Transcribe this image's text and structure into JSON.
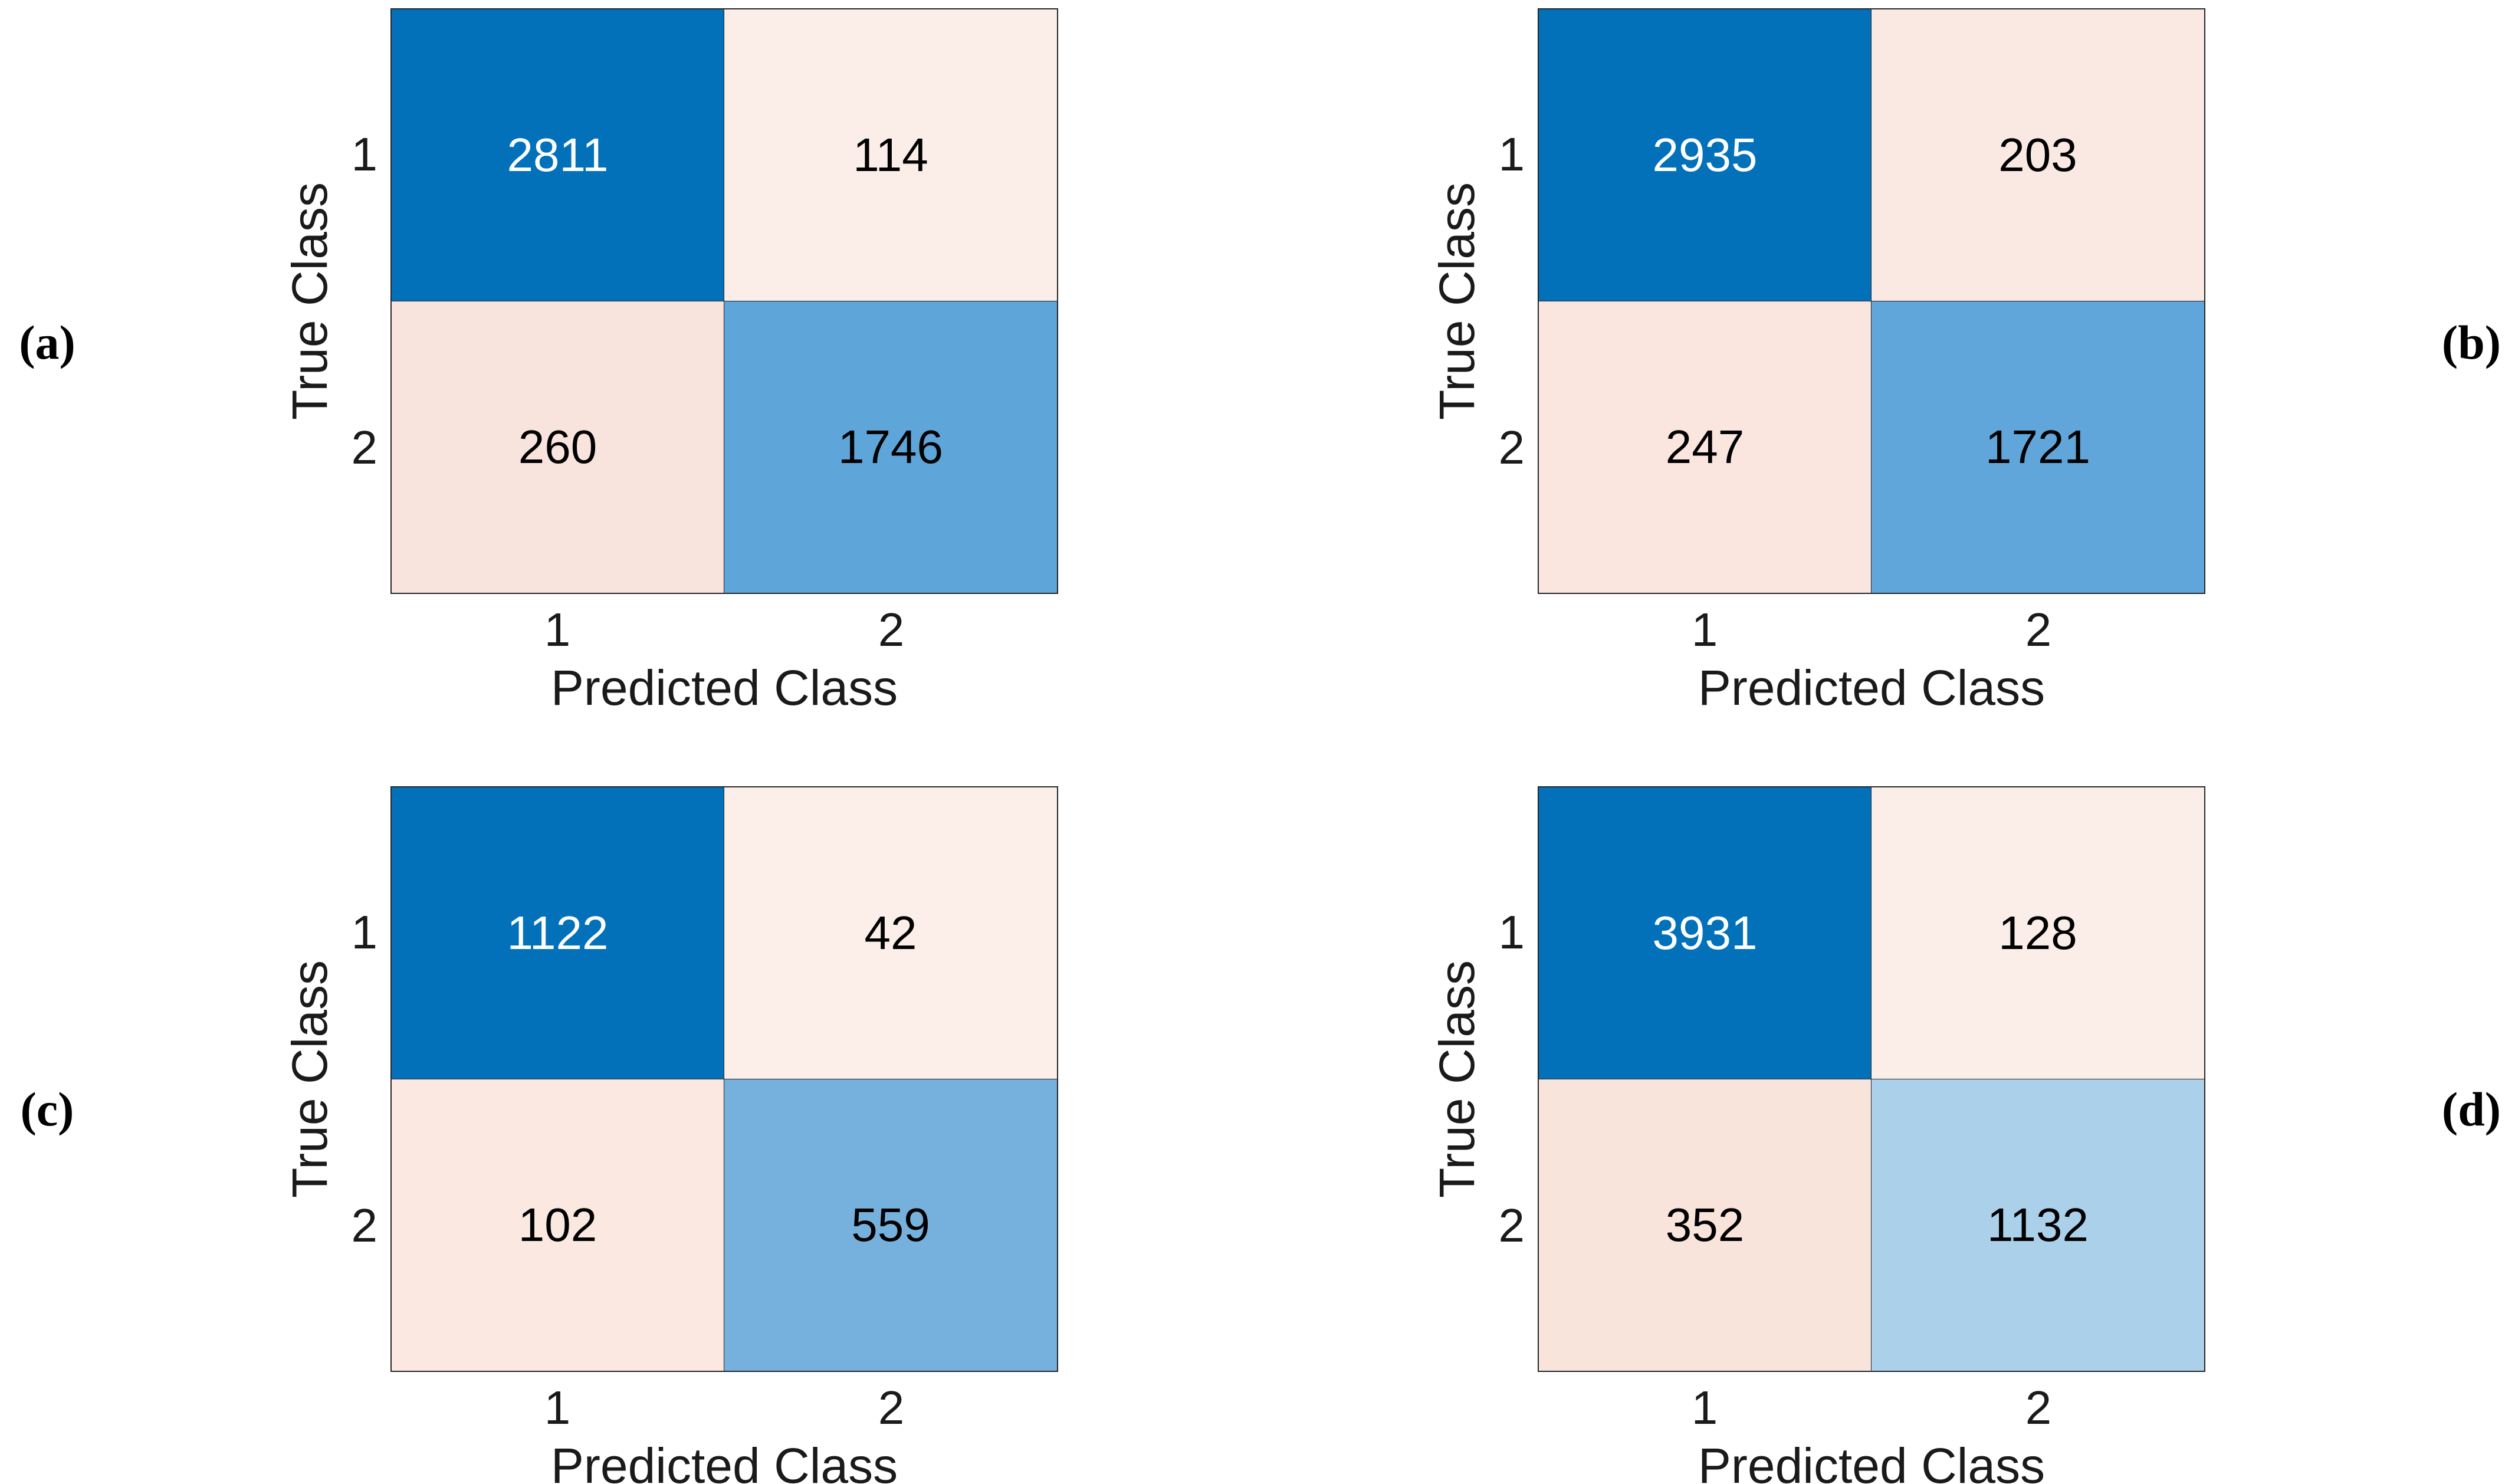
{
  "figure": {
    "background": "#ffffff",
    "text_color": "#1a1a1a",
    "diagonal_color_max": "#0271ba",
    "offdiagonal_color_base": "#f9e4dd"
  },
  "panels": [
    {
      "letter": "(a)",
      "x_label": "Predicted Class",
      "y_label": "True Class",
      "x_ticks": [
        "1",
        "2"
      ],
      "y_ticks": [
        "1",
        "2"
      ],
      "cells": [
        [
          {
            "value": "2811",
            "bg": "#0271ba",
            "fg": "#ffffff"
          },
          {
            "value": "114",
            "bg": "#fbeee9",
            "fg": "#000000"
          }
        ],
        [
          {
            "value": "260",
            "bg": "#f9e4dd",
            "fg": "#000000"
          },
          {
            "value": "1746",
            "bg": "#5ea5d9",
            "fg": "#000000"
          }
        ]
      ]
    },
    {
      "letter": "(b)",
      "x_label": "Predicted Class",
      "y_label": "True Class",
      "x_ticks": [
        "1",
        "2"
      ],
      "y_ticks": [
        "1",
        "2"
      ],
      "cells": [
        [
          {
            "value": "2935",
            "bg": "#0271ba",
            "fg": "#ffffff"
          },
          {
            "value": "203",
            "bg": "#fae9e3",
            "fg": "#000000"
          }
        ],
        [
          {
            "value": "247",
            "bg": "#fae6df",
            "fg": "#000000"
          },
          {
            "value": "1721",
            "bg": "#61a6da",
            "fg": "#000000"
          }
        ]
      ]
    },
    {
      "letter": "(c)",
      "x_label": "Predicted Class",
      "y_label": "True Class",
      "x_ticks": [
        "1",
        "2"
      ],
      "y_ticks": [
        "1",
        "2"
      ],
      "cells": [
        [
          {
            "value": "1122",
            "bg": "#0271ba",
            "fg": "#ffffff"
          },
          {
            "value": "42",
            "bg": "#fcefe9",
            "fg": "#000000"
          }
        ],
        [
          {
            "value": "102",
            "bg": "#fae8e1",
            "fg": "#000000"
          },
          {
            "value": "559",
            "bg": "#76b1dd",
            "fg": "#000000"
          }
        ]
      ]
    },
    {
      "letter": "(d)",
      "x_label": "Predicted Class",
      "y_label": "True Class",
      "x_ticks": [
        "1",
        "2"
      ],
      "y_ticks": [
        "1",
        "2"
      ],
      "cells": [
        [
          {
            "value": "3931",
            "bg": "#0271ba",
            "fg": "#ffffff"
          },
          {
            "value": "128",
            "bg": "#fbeee9",
            "fg": "#000000"
          }
        ],
        [
          {
            "value": "352",
            "bg": "#f9e4dc",
            "fg": "#000000"
          },
          {
            "value": "1132",
            "bg": "#abd0ea",
            "fg": "#000000"
          }
        ]
      ]
    }
  ],
  "chart_data": [
    {
      "type": "heatmap",
      "panel": "(a)",
      "title": "",
      "xlabel": "Predicted Class",
      "ylabel": "True Class",
      "x_categories": [
        "1",
        "2"
      ],
      "y_categories": [
        "1",
        "2"
      ],
      "matrix": [
        [
          2811,
          114
        ],
        [
          260,
          1746
        ]
      ],
      "legend_position": "none",
      "grid": false
    },
    {
      "type": "heatmap",
      "panel": "(b)",
      "title": "",
      "xlabel": "Predicted Class",
      "ylabel": "True Class",
      "x_categories": [
        "1",
        "2"
      ],
      "y_categories": [
        "1",
        "2"
      ],
      "matrix": [
        [
          2935,
          203
        ],
        [
          247,
          1721
        ]
      ],
      "legend_position": "none",
      "grid": false
    },
    {
      "type": "heatmap",
      "panel": "(c)",
      "title": "",
      "xlabel": "Predicted Class",
      "ylabel": "True Class",
      "x_categories": [
        "1",
        "2"
      ],
      "y_categories": [
        "1",
        "2"
      ],
      "matrix": [
        [
          1122,
          42
        ],
        [
          102,
          559
        ]
      ],
      "legend_position": "none",
      "grid": false
    },
    {
      "type": "heatmap",
      "panel": "(d)",
      "title": "",
      "xlabel": "Predicted Class",
      "ylabel": "True Class",
      "x_categories": [
        "1",
        "2"
      ],
      "y_categories": [
        "1",
        "2"
      ],
      "matrix": [
        [
          3931,
          128
        ],
        [
          352,
          1132
        ]
      ],
      "legend_position": "none",
      "grid": false
    }
  ]
}
